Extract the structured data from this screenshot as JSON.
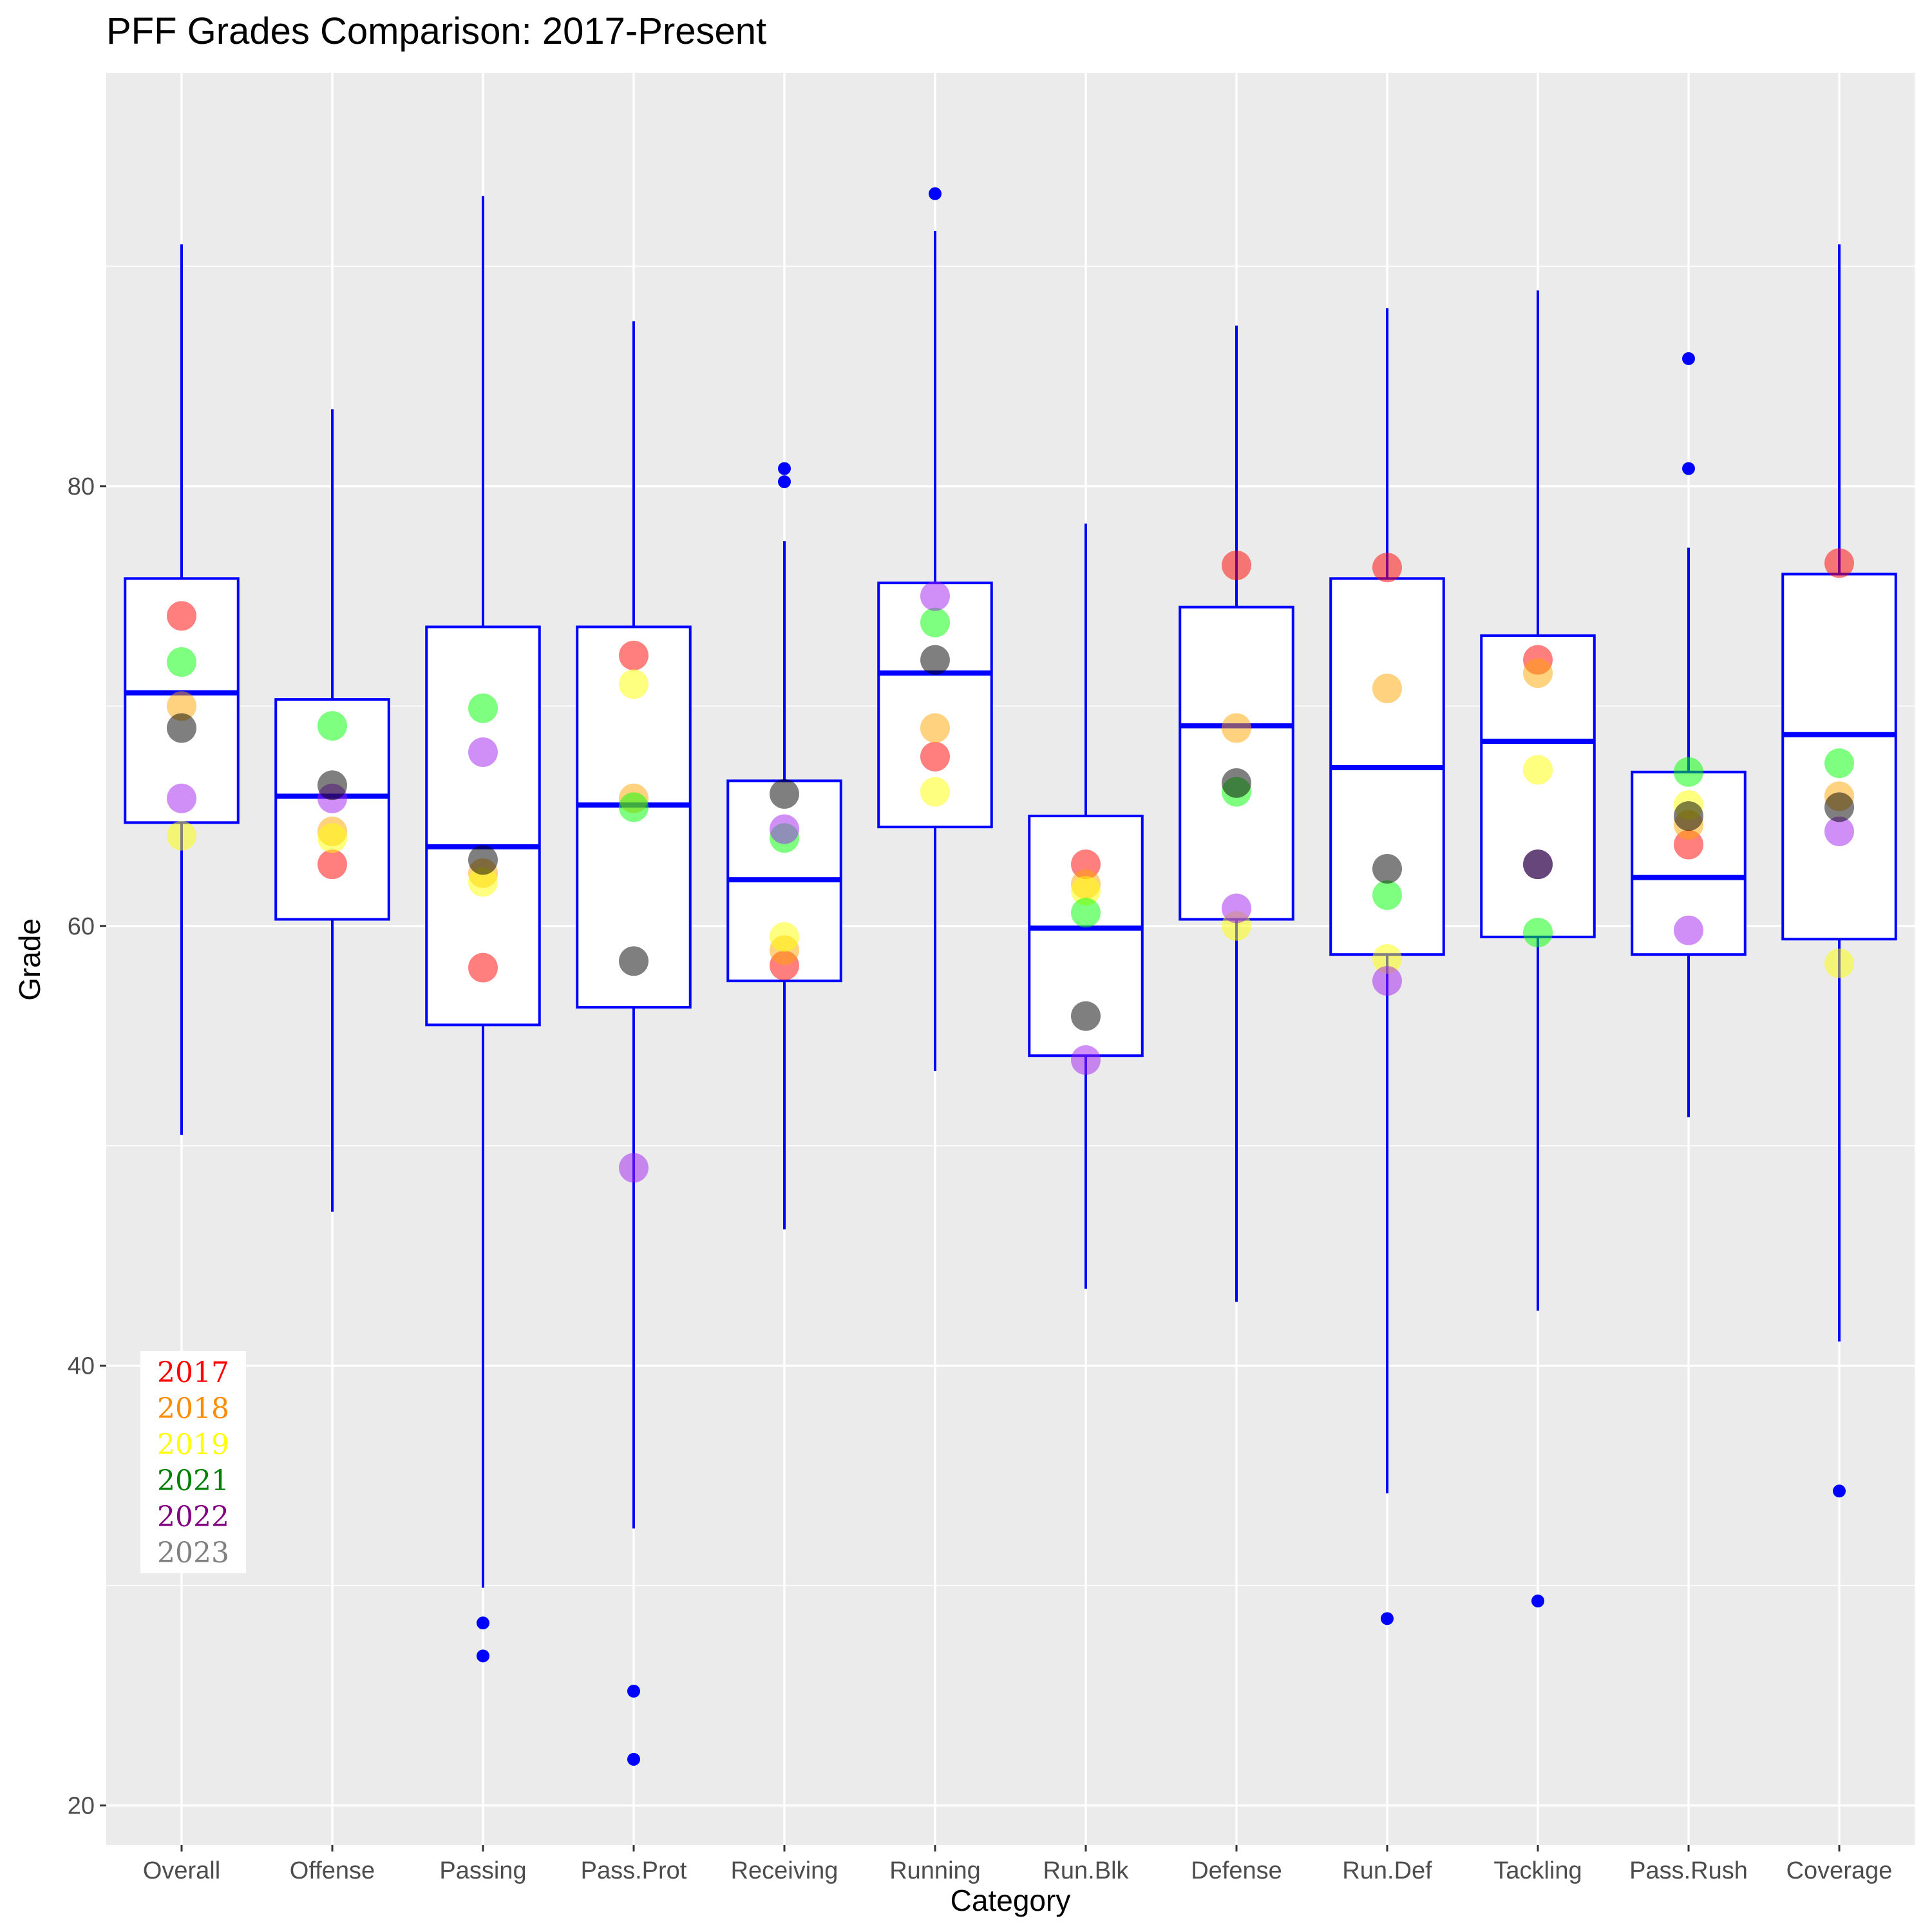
{
  "chart_data": {
    "type": "boxplot",
    "title": "PFF Grades Comparison: 2017-Present",
    "xlabel": "Category",
    "ylabel": "Grade",
    "ylim": [
      18.2,
      98.8
    ],
    "yticks": [
      20,
      40,
      60,
      80
    ],
    "categories": [
      "Overall",
      "Offense",
      "Passing",
      "Pass.Prot",
      "Receiving",
      "Running",
      "Run.Blk",
      "Defense",
      "Run.Def",
      "Tackling",
      "Pass.Rush",
      "Coverage"
    ],
    "boxes": [
      {
        "category": "Overall",
        "whisker_low": 50.5,
        "q1": 64.7,
        "median": 70.6,
        "q3": 75.8,
        "whisker_high": 91.0,
        "outliers": []
      },
      {
        "category": "Offense",
        "whisker_low": 47.0,
        "q1": 60.3,
        "median": 65.9,
        "q3": 70.3,
        "whisker_high": 83.5,
        "outliers": []
      },
      {
        "category": "Passing",
        "whisker_low": 29.9,
        "q1": 55.5,
        "median": 63.6,
        "q3": 73.6,
        "whisker_high": 93.2,
        "outliers": [
          28.3,
          26.8
        ]
      },
      {
        "category": "Pass.Prot",
        "whisker_low": 32.6,
        "q1": 56.3,
        "median": 65.5,
        "q3": 73.6,
        "whisker_high": 87.5,
        "outliers": [
          25.2,
          22.1
        ]
      },
      {
        "category": "Receiving",
        "whisker_low": 46.2,
        "q1": 57.5,
        "median": 62.1,
        "q3": 66.6,
        "whisker_high": 77.5,
        "outliers": [
          80.8,
          80.2
        ]
      },
      {
        "category": "Running",
        "whisker_low": 53.4,
        "q1": 64.5,
        "median": 71.5,
        "q3": 75.6,
        "whisker_high": 91.6,
        "outliers": [
          93.3
        ]
      },
      {
        "category": "Run.Blk",
        "whisker_low": 43.5,
        "q1": 54.1,
        "median": 59.9,
        "q3": 65.0,
        "whisker_high": 78.3,
        "outliers": []
      },
      {
        "category": "Defense",
        "whisker_low": 42.9,
        "q1": 60.3,
        "median": 69.1,
        "q3": 74.5,
        "whisker_high": 87.3,
        "outliers": []
      },
      {
        "category": "Run.Def",
        "whisker_low": 34.2,
        "q1": 58.7,
        "median": 67.2,
        "q3": 75.8,
        "whisker_high": 88.1,
        "outliers": [
          28.5
        ]
      },
      {
        "category": "Tackling",
        "whisker_low": 42.5,
        "q1": 59.5,
        "median": 68.4,
        "q3": 73.2,
        "whisker_high": 88.9,
        "outliers": [
          29.3
        ]
      },
      {
        "category": "Pass.Rush",
        "whisker_low": 51.3,
        "q1": 58.7,
        "median": 62.2,
        "q3": 67.0,
        "whisker_high": 77.2,
        "outliers": [
          85.8,
          80.8
        ]
      },
      {
        "category": "Coverage",
        "whisker_low": 41.1,
        "q1": 59.4,
        "median": 68.7,
        "q3": 76.0,
        "whisker_high": 91.0,
        "outliers": [
          34.3
        ]
      }
    ],
    "series": [
      {
        "name": "2017",
        "color": "#ff0000",
        "values": [
          74.1,
          62.8,
          58.1,
          72.3,
          58.2,
          67.7,
          62.8,
          76.4,
          76.3,
          72.1,
          63.7,
          76.5
        ]
      },
      {
        "name": "2018",
        "color": "#ffa500",
        "values": [
          70.0,
          64.3,
          62.4,
          65.8,
          58.9,
          69.0,
          61.9,
          69.0,
          70.8,
          71.5,
          64.6,
          65.9
        ]
      },
      {
        "name": "2019",
        "color": "#ffff00",
        "values": [
          64.1,
          64.0,
          62.0,
          71.0,
          59.5,
          66.1,
          61.6,
          60.0,
          58.5,
          67.1,
          65.5,
          58.3
        ]
      },
      {
        "name": "2021",
        "color": "#00ff00",
        "values": [
          72.0,
          69.1,
          69.9,
          65.4,
          64.0,
          73.8,
          60.6,
          66.1,
          61.4,
          59.7,
          67.0,
          67.4
        ]
      },
      {
        "name": "2022",
        "color": "#a020f0",
        "values": [
          65.8,
          65.8,
          67.9,
          49.0,
          64.4,
          75.0,
          53.9,
          60.8,
          57.5,
          62.8,
          59.8,
          64.3
        ]
      },
      {
        "name": "2023",
        "color": "#000000",
        "values": [
          69.0,
          66.4,
          63.0,
          58.4,
          66.0,
          72.1,
          55.9,
          66.5,
          62.6,
          62.8,
          65.0,
          65.4
        ]
      }
    ],
    "legend": {
      "position": "bottom-left",
      "entries": [
        {
          "label": "2017",
          "color": "#ff0000"
        },
        {
          "label": "2018",
          "color": "#ff8c00"
        },
        {
          "label": "2019",
          "color": "#ffff00"
        },
        {
          "label": "2021",
          "color": "#008000"
        },
        {
          "label": "2022",
          "color": "#800080"
        },
        {
          "label": "2023",
          "color": "#808080"
        }
      ]
    },
    "box_color": "#0000ff",
    "panel_color": "#ebebeb",
    "grid": true
  }
}
